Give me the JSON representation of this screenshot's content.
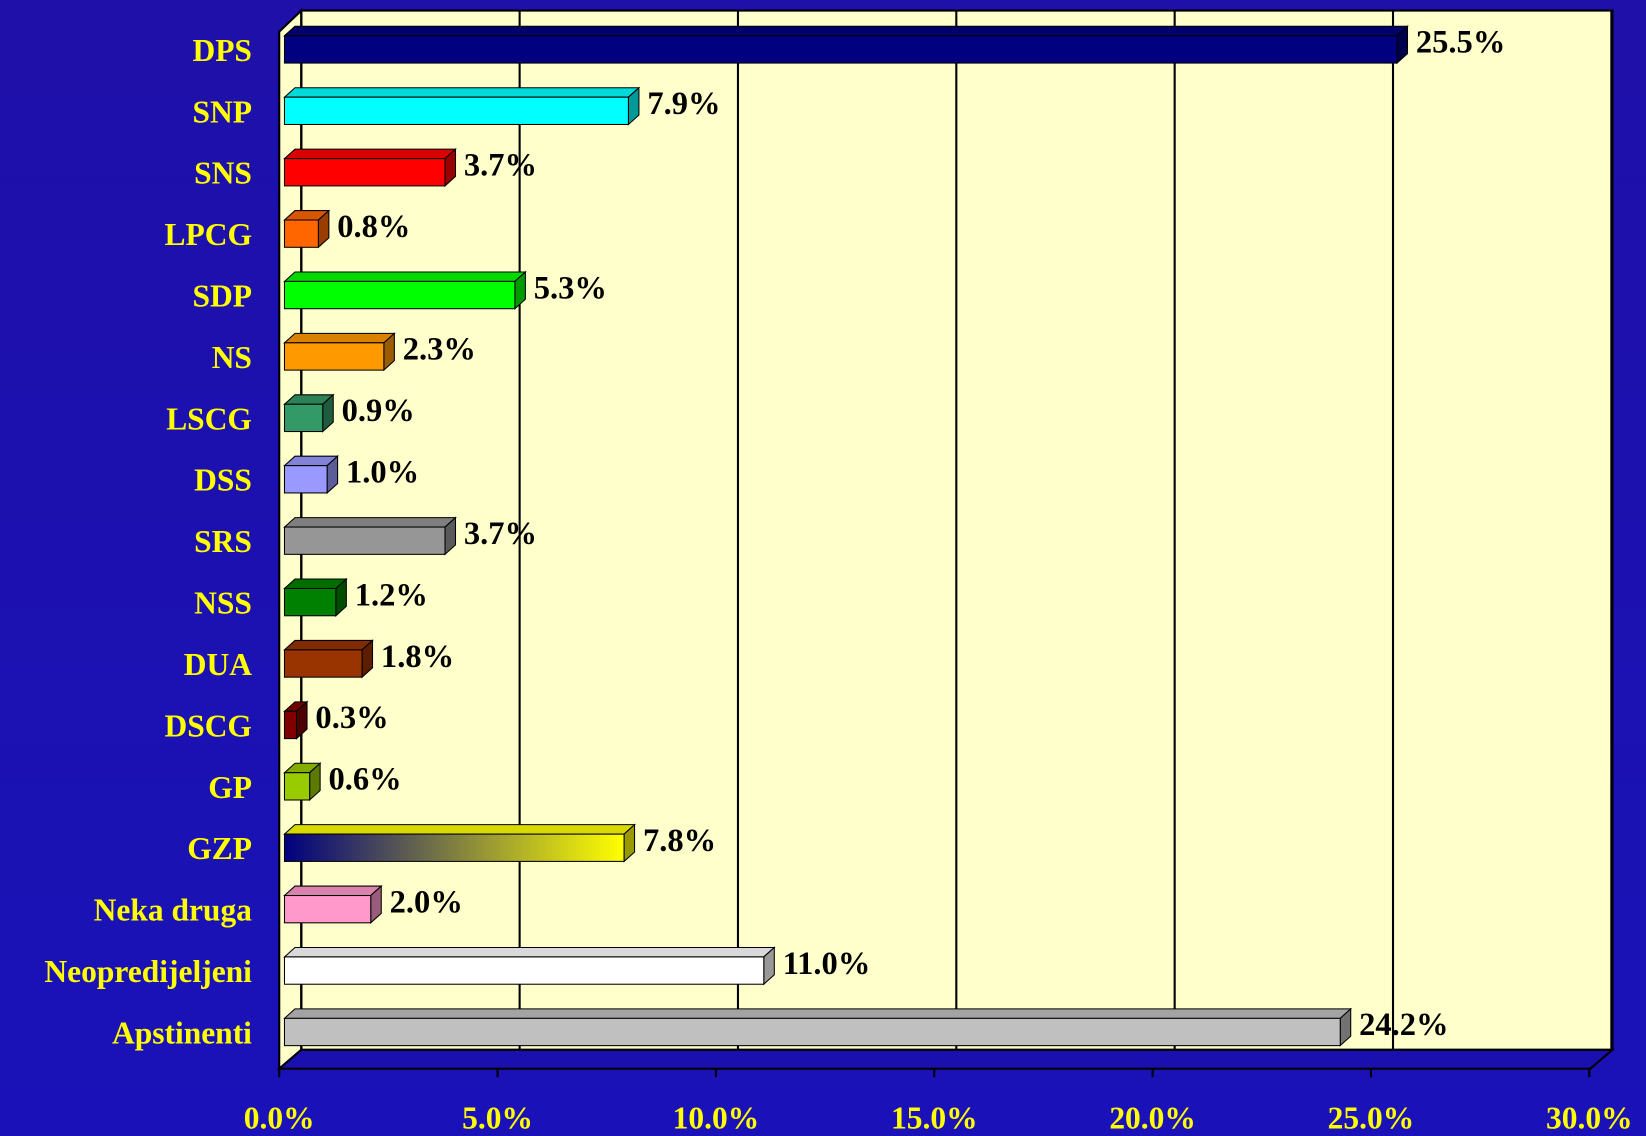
{
  "chart_data": {
    "type": "bar",
    "orientation": "horizontal",
    "categories": [
      "DPS",
      "SNP",
      "SNS",
      "LPCG",
      "SDP",
      "NS",
      "LSCG",
      "DSS",
      "SRS",
      "NSS",
      "DUA",
      "DSCG",
      "GP",
      "GZP",
      "Neka druga",
      "Neopredijeljeni",
      "Apstinenti"
    ],
    "values": [
      25.5,
      7.9,
      3.7,
      0.8,
      5.3,
      2.3,
      0.9,
      1.0,
      3.7,
      1.2,
      1.8,
      0.3,
      0.6,
      7.8,
      2.0,
      11.0,
      24.2
    ],
    "value_labels": [
      "25.5%",
      "7.9%",
      "3.7%",
      "0.8%",
      "5.3%",
      "2.3%",
      "0.9%",
      "1.0%",
      "3.7%",
      "1.2%",
      "1.8%",
      "0.3%",
      "0.6%",
      "7.8%",
      "2.0%",
      "11.0%",
      "24.2%"
    ],
    "colors": [
      "#000080",
      "#00ffff",
      "#ff0000",
      "#ff6600",
      "#00ff00",
      "#ff9900",
      "#339966",
      "#9999ff",
      "#969696",
      "#008000",
      "#993300",
      "#800000",
      "#99cc00",
      [
        "#000080",
        "#ffff00"
      ],
      "#ff99cc",
      "#ffffff",
      "#c0c0c0"
    ],
    "xlim": [
      0,
      30
    ],
    "xticks": [
      {
        "value": 0,
        "label": "0.0%"
      },
      {
        "value": 5,
        "label": "5.0%"
      },
      {
        "value": 10,
        "label": "10.0%"
      },
      {
        "value": 15,
        "label": "15.0%"
      },
      {
        "value": 20,
        "label": "20.0%"
      },
      {
        "value": 25,
        "label": "25.0%"
      },
      {
        "value": 30,
        "label": "30.0%"
      }
    ],
    "grid": true
  }
}
